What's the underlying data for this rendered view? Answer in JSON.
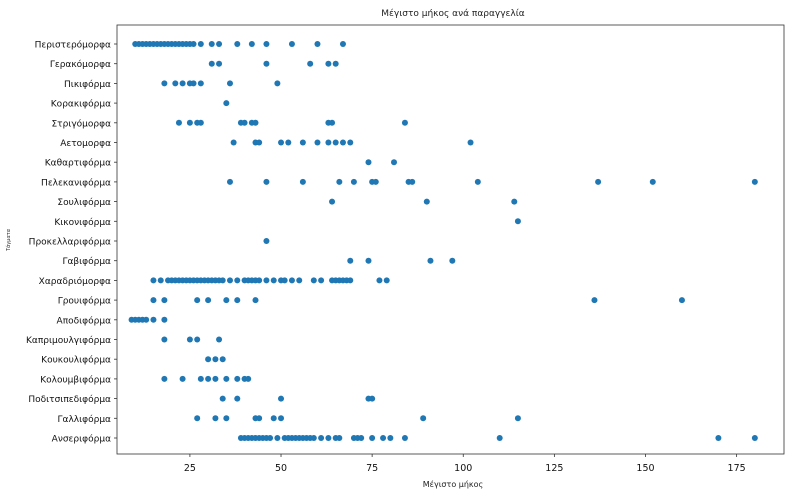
{
  "chart_data": {
    "type": "scatter",
    "title": "Μέγιστο μήκος ανά παραγγελία",
    "xlabel": "Μέγιστο μήκος",
    "ylabel": "Τάγματα",
    "xlim": [
      5,
      188
    ],
    "xticks": [
      25,
      50,
      75,
      100,
      125,
      150,
      175
    ],
    "xtick_labels": [
      "25",
      "50",
      "75",
      "100",
      "125",
      "150",
      "175"
    ],
    "grid": false,
    "point_color": "#1f77b4",
    "categories": [
      "Περιστερόμορφα",
      "Γερακόμορφα",
      "Πικιφόρμα",
      "Κορακιφόρμα",
      "Στριγόμορφα",
      "Αετομορφα",
      "Καθαρτιφόρμα",
      "Πελεκανιφόρμα",
      "Σουλιφόρμα",
      "Κικονιφόρμα",
      "Προκελλαριφόρμα",
      "Γαβιφόρμα",
      "Χαραδριόμορφα",
      "Γρουιφόρμα",
      "Αποδιφόρμα",
      "Καπριμουλγιφόρμα",
      "Κουκουλιφόρμα",
      "Κολουμβιφόρμα",
      "Ποδιτσιπεδιφόρμα",
      "Γαλλιφόρμα",
      "Ανσεριφόρμα"
    ],
    "series": [
      {
        "category": "Περιστερόμορφα",
        "x": [
          10,
          11,
          12,
          13,
          14,
          15,
          16,
          17,
          18,
          19,
          20,
          21,
          22,
          23,
          24,
          25,
          26,
          28,
          31,
          33,
          38,
          42,
          46,
          53,
          60,
          67
        ]
      },
      {
        "category": "Γερακόμορφα",
        "x": [
          31,
          33,
          46,
          58,
          63,
          65
        ]
      },
      {
        "category": "Πικιφόρμα",
        "x": [
          18,
          21,
          23,
          25,
          26,
          28,
          36,
          49
        ]
      },
      {
        "category": "Κορακιφόρμα",
        "x": [
          35
        ]
      },
      {
        "category": "Στριγόμορφα",
        "x": [
          22,
          25,
          27,
          28,
          39,
          40,
          42,
          43,
          63,
          64,
          84
        ]
      },
      {
        "category": "Αετομορφα",
        "x": [
          37,
          43,
          44,
          50,
          52,
          56,
          60,
          63,
          65,
          67,
          69,
          102
        ]
      },
      {
        "category": "Καθαρτιφόρμα",
        "x": [
          74,
          81
        ]
      },
      {
        "category": "Πελεκανιφόρμα",
        "x": [
          36,
          46,
          56,
          66,
          70,
          75,
          76,
          85,
          86,
          104,
          137,
          152,
          180
        ]
      },
      {
        "category": "Σουλιφόρμα",
        "x": [
          64,
          90,
          114
        ]
      },
      {
        "category": "Κικονιφόρμα",
        "x": [
          115
        ]
      },
      {
        "category": "Προκελλαριφόρμα",
        "x": [
          46
        ]
      },
      {
        "category": "Γαβιφόρμα",
        "x": [
          69,
          74,
          91,
          97
        ]
      },
      {
        "category": "Χαραδριόμορφα",
        "x": [
          15,
          17,
          19,
          20,
          21,
          22,
          23,
          24,
          25,
          26,
          27,
          28,
          29,
          30,
          31,
          32,
          33,
          34,
          36,
          38,
          40,
          41,
          42,
          43,
          44,
          46,
          48,
          50,
          51,
          53,
          55,
          59,
          61,
          64,
          65,
          66,
          67,
          68,
          69,
          77,
          79
        ]
      },
      {
        "category": "Γρουιφόρμα",
        "x": [
          15,
          18,
          27,
          30,
          35,
          38,
          43,
          136,
          160
        ]
      },
      {
        "category": "Αποδιφόρμα",
        "x": [
          9,
          10,
          11,
          12,
          13,
          15,
          18
        ]
      },
      {
        "category": "Καπριμουλγιφόρμα",
        "x": [
          18,
          25,
          27,
          33
        ]
      },
      {
        "category": "Κουκουλιφόρμα",
        "x": [
          30,
          32,
          34
        ]
      },
      {
        "category": "Κολουμβιφόρμα",
        "x": [
          18,
          23,
          28,
          30,
          32,
          35,
          38,
          40,
          41
        ]
      },
      {
        "category": "Ποδιτσιπεδιφόρμα",
        "x": [
          34,
          38,
          50,
          74,
          75
        ]
      },
      {
        "category": "Γαλλιφόρμα",
        "x": [
          27,
          32,
          35,
          43,
          44,
          48,
          50,
          89,
          115
        ]
      },
      {
        "category": "Ανσεριφόρμα",
        "x": [
          39,
          40,
          41,
          42,
          43,
          44,
          45,
          46,
          47,
          49,
          51,
          52,
          53,
          54,
          55,
          56,
          57,
          58,
          59,
          61,
          63,
          65,
          66,
          70,
          71,
          72,
          75,
          78,
          80,
          84,
          110,
          170,
          180
        ]
      }
    ]
  }
}
